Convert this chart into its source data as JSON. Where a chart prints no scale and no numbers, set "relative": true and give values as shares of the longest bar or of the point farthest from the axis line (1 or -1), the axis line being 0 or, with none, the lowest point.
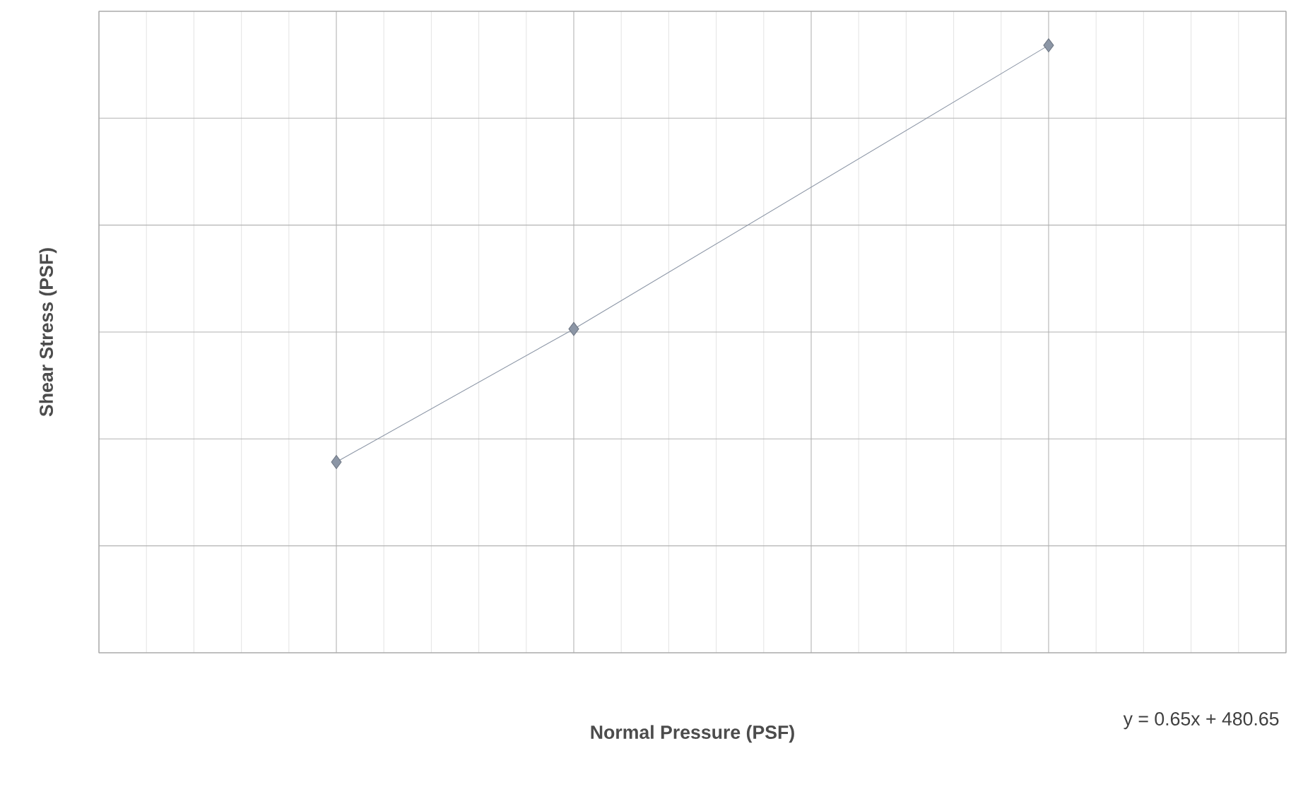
{
  "chart_data": {
    "type": "line",
    "relative": true,
    "xlabel": "Normal Pressure (PSF)",
    "ylabel": "Shear Stress (PSF)",
    "categories": [
      null,
      null,
      null,
      null
    ],
    "series": [
      {
        "color": "#8c96a6",
        "values": [
          0.314,
          0.533,
          null,
          1
        ]
      }
    ],
    "marker": "diamond",
    "grid": true,
    "annotations": [
      "y = 0.65x + 480.65"
    ]
  }
}
